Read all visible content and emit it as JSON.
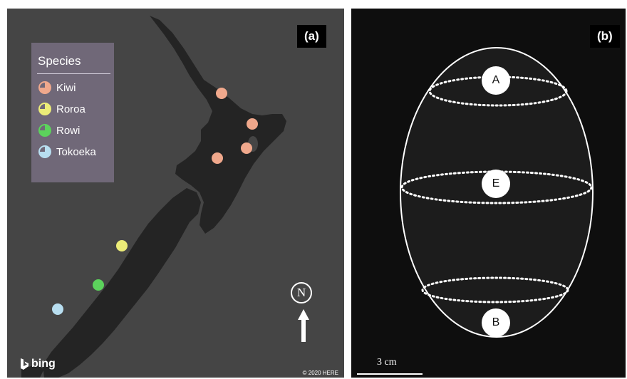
{
  "panel_a": {
    "label": "(a)",
    "legend": {
      "title": "Species",
      "items": [
        {
          "label": "Kiwi",
          "color": "#f0a88c"
        },
        {
          "label": "Roroa",
          "color": "#ecec78"
        },
        {
          "label": "Rowi",
          "color": "#5cd25c"
        },
        {
          "label": "Tokoeka",
          "color": "#b8def0"
        }
      ]
    },
    "markers": [
      {
        "species": "Kiwi"
      },
      {
        "species": "Kiwi"
      },
      {
        "species": "Kiwi"
      },
      {
        "species": "Kiwi"
      },
      {
        "species": "Roroa"
      },
      {
        "species": "Rowi"
      },
      {
        "species": "Tokoeka"
      }
    ],
    "north_label": "N",
    "brand": "bing",
    "copyright": "© 2020 HERE",
    "colors": {
      "background": "#454545",
      "land": "#242424",
      "legend_bg": "#706878"
    }
  },
  "panel_b": {
    "label": "(b)",
    "egg_labels": [
      "A",
      "E",
      "B"
    ],
    "scale_label": "3 cm",
    "colors": {
      "background": "#0e0e0e",
      "egg_fill": "#1c1c1c",
      "outline": "#ffffff"
    }
  }
}
